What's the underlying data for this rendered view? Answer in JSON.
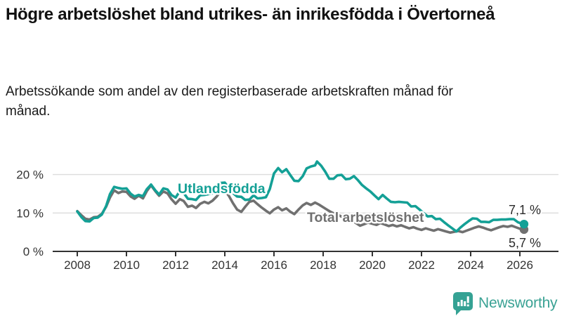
{
  "header": {
    "title": "Högre arbetslöshet bland utrikes- än inrikesfödda i Övertorneå",
    "subtitle": "Arbetssökande som andel av den registerbaserade arbetskraften månad för månad."
  },
  "branding": {
    "name": "Newsworthy",
    "icon_color": "#35a294",
    "text_color": "#3aa294"
  },
  "chart_data": {
    "type": "line",
    "title": "Högre arbetslöshet bland utrikes- än inrikesfödda i Övertorneå",
    "xlabel": "",
    "ylabel": "",
    "ylim": [
      0,
      25
    ],
    "grid": "horizontal",
    "grid_color": "#dcdcdc",
    "axis_color": "#333333",
    "legend": "inline-labels",
    "x_ticks": [
      2008,
      2010,
      2012,
      2014,
      2016,
      2018,
      2020,
      2022,
      2024,
      2026
    ],
    "y_ticks": [
      {
        "value": 0,
        "label": "0 %"
      },
      {
        "value": 10,
        "label": "10 %"
      },
      {
        "value": 20,
        "label": "20 %"
      }
    ],
    "series": [
      {
        "name": "Utlandsfödda",
        "color": "#14a096",
        "end_label": "7,1 %",
        "end_value": 7.1,
        "points": [
          [
            2008.0,
            10.4
          ],
          [
            2008.17,
            8.9
          ],
          [
            2008.33,
            7.9
          ],
          [
            2008.5,
            7.8
          ],
          [
            2008.67,
            8.7
          ],
          [
            2008.83,
            8.8
          ],
          [
            2009.0,
            9.6
          ],
          [
            2009.17,
            11.8
          ],
          [
            2009.33,
            14.9
          ],
          [
            2009.5,
            16.8
          ],
          [
            2009.67,
            16.5
          ],
          [
            2009.83,
            16.3
          ],
          [
            2010.0,
            16.4
          ],
          [
            2010.17,
            15.0
          ],
          [
            2010.33,
            14.3
          ],
          [
            2010.5,
            14.7
          ],
          [
            2010.67,
            14.4
          ],
          [
            2010.83,
            16.2
          ],
          [
            2011.0,
            17.4
          ],
          [
            2011.17,
            15.9
          ],
          [
            2011.33,
            14.8
          ],
          [
            2011.5,
            16.4
          ],
          [
            2011.67,
            16.1
          ],
          [
            2011.83,
            14.7
          ],
          [
            2012.0,
            14.0
          ],
          [
            2012.17,
            15.7
          ],
          [
            2012.33,
            15.2
          ],
          [
            2012.5,
            13.7
          ],
          [
            2012.67,
            13.6
          ],
          [
            2012.83,
            13.4
          ],
          [
            2013.0,
            14.6
          ],
          [
            2013.17,
            14.7
          ],
          [
            2013.33,
            14.9
          ],
          [
            2013.5,
            15.1
          ],
          [
            2013.67,
            16.4
          ],
          [
            2013.83,
            17.8
          ],
          [
            2014.0,
            17.9
          ],
          [
            2014.17,
            16.5
          ],
          [
            2014.33,
            15.2
          ],
          [
            2014.5,
            14.3
          ],
          [
            2014.67,
            14.2
          ],
          [
            2014.83,
            13.4
          ],
          [
            2015.0,
            13.5
          ],
          [
            2015.17,
            14.6
          ],
          [
            2015.33,
            13.8
          ],
          [
            2015.5,
            13.9
          ],
          [
            2015.67,
            14.1
          ],
          [
            2015.83,
            16.2
          ],
          [
            2016.0,
            20.3
          ],
          [
            2016.17,
            21.7
          ],
          [
            2016.33,
            20.6
          ],
          [
            2016.5,
            21.4
          ],
          [
            2016.67,
            19.8
          ],
          [
            2016.83,
            18.4
          ],
          [
            2017.0,
            18.3
          ],
          [
            2017.17,
            19.6
          ],
          [
            2017.33,
            21.6
          ],
          [
            2017.5,
            22.1
          ],
          [
            2017.67,
            22.4
          ],
          [
            2017.75,
            23.4
          ],
          [
            2017.92,
            22.3
          ],
          [
            2018.08,
            20.8
          ],
          [
            2018.25,
            18.9
          ],
          [
            2018.42,
            18.9
          ],
          [
            2018.58,
            19.8
          ],
          [
            2018.75,
            19.9
          ],
          [
            2018.92,
            18.8
          ],
          [
            2019.08,
            18.9
          ],
          [
            2019.25,
            19.6
          ],
          [
            2019.42,
            18.5
          ],
          [
            2019.58,
            17.3
          ],
          [
            2019.75,
            16.4
          ],
          [
            2019.92,
            15.6
          ],
          [
            2020.08,
            14.6
          ],
          [
            2020.25,
            13.6
          ],
          [
            2020.42,
            14.7
          ],
          [
            2020.58,
            13.8
          ],
          [
            2020.75,
            12.9
          ],
          [
            2020.92,
            12.8
          ],
          [
            2021.08,
            12.9
          ],
          [
            2021.25,
            12.8
          ],
          [
            2021.42,
            12.7
          ],
          [
            2021.58,
            11.7
          ],
          [
            2021.75,
            11.8
          ],
          [
            2021.92,
            10.9
          ],
          [
            2022.08,
            10.0
          ],
          [
            2022.25,
            9.1
          ],
          [
            2022.42,
            9.2
          ],
          [
            2022.58,
            8.4
          ],
          [
            2022.75,
            8.5
          ],
          [
            2022.92,
            7.6
          ],
          [
            2023.08,
            6.8
          ],
          [
            2023.25,
            6.0
          ],
          [
            2023.42,
            5.2
          ],
          [
            2023.58,
            6.2
          ],
          [
            2023.75,
            7.1
          ],
          [
            2023.92,
            7.9
          ],
          [
            2024.08,
            8.6
          ],
          [
            2024.25,
            8.5
          ],
          [
            2024.42,
            7.7
          ],
          [
            2024.58,
            7.7
          ],
          [
            2024.75,
            7.6
          ],
          [
            2024.92,
            8.2
          ],
          [
            2025.08,
            8.2
          ],
          [
            2025.25,
            8.3
          ],
          [
            2025.42,
            8.3
          ],
          [
            2025.58,
            8.4
          ],
          [
            2025.75,
            8.4
          ],
          [
            2025.92,
            7.6
          ],
          [
            2026.08,
            7.2
          ],
          [
            2026.17,
            7.1
          ]
        ]
      },
      {
        "name": "Total arbetslöshet",
        "color": "#707070",
        "end_label": "5,7 %",
        "end_value": 5.7,
        "points": [
          [
            2008.0,
            10.5
          ],
          [
            2008.17,
            9.4
          ],
          [
            2008.33,
            8.5
          ],
          [
            2008.5,
            8.3
          ],
          [
            2008.67,
            8.9
          ],
          [
            2008.83,
            9.0
          ],
          [
            2009.0,
            9.8
          ],
          [
            2009.17,
            11.6
          ],
          [
            2009.33,
            14.0
          ],
          [
            2009.5,
            15.9
          ],
          [
            2009.67,
            15.2
          ],
          [
            2009.83,
            15.6
          ],
          [
            2010.0,
            15.5
          ],
          [
            2010.17,
            14.3
          ],
          [
            2010.33,
            13.7
          ],
          [
            2010.5,
            14.5
          ],
          [
            2010.67,
            13.8
          ],
          [
            2010.83,
            15.7
          ],
          [
            2011.0,
            17.2
          ],
          [
            2011.17,
            15.7
          ],
          [
            2011.33,
            14.5
          ],
          [
            2011.5,
            15.6
          ],
          [
            2011.67,
            15.1
          ],
          [
            2011.83,
            13.6
          ],
          [
            2012.0,
            12.4
          ],
          [
            2012.17,
            13.6
          ],
          [
            2012.33,
            13.1
          ],
          [
            2012.5,
            11.6
          ],
          [
            2012.67,
            11.9
          ],
          [
            2012.83,
            11.3
          ],
          [
            2013.0,
            12.4
          ],
          [
            2013.17,
            12.9
          ],
          [
            2013.33,
            12.5
          ],
          [
            2013.5,
            13.2
          ],
          [
            2013.67,
            14.3
          ],
          [
            2013.83,
            15.6
          ],
          [
            2014.0,
            15.9
          ],
          [
            2014.17,
            14.4
          ],
          [
            2014.33,
            12.6
          ],
          [
            2014.5,
            10.9
          ],
          [
            2014.67,
            10.3
          ],
          [
            2014.83,
            11.6
          ],
          [
            2015.0,
            12.9
          ],
          [
            2015.17,
            13.2
          ],
          [
            2015.33,
            12.3
          ],
          [
            2015.5,
            11.4
          ],
          [
            2015.67,
            10.6
          ],
          [
            2015.83,
            9.9
          ],
          [
            2016.0,
            10.9
          ],
          [
            2016.17,
            11.5
          ],
          [
            2016.33,
            10.7
          ],
          [
            2016.5,
            11.2
          ],
          [
            2016.67,
            10.3
          ],
          [
            2016.83,
            9.7
          ],
          [
            2017.0,
            10.9
          ],
          [
            2017.17,
            12.0
          ],
          [
            2017.33,
            12.6
          ],
          [
            2017.5,
            12.1
          ],
          [
            2017.67,
            12.7
          ],
          [
            2017.83,
            12.2
          ],
          [
            2018.0,
            11.5
          ],
          [
            2018.17,
            10.8
          ],
          [
            2018.33,
            10.2
          ],
          [
            2018.5,
            9.7
          ],
          [
            2018.67,
            9.3
          ],
          [
            2018.83,
            8.8
          ],
          [
            2019.0,
            8.4
          ],
          [
            2019.17,
            8.0
          ],
          [
            2019.33,
            7.4
          ],
          [
            2019.5,
            6.7
          ],
          [
            2019.67,
            7.1
          ],
          [
            2019.83,
            7.5
          ],
          [
            2020.0,
            7.2
          ],
          [
            2020.17,
            6.9
          ],
          [
            2020.33,
            7.4
          ],
          [
            2020.5,
            7.0
          ],
          [
            2020.67,
            6.6
          ],
          [
            2020.83,
            6.9
          ],
          [
            2021.0,
            6.5
          ],
          [
            2021.17,
            6.8
          ],
          [
            2021.33,
            6.4
          ],
          [
            2021.5,
            6.0
          ],
          [
            2021.67,
            6.3
          ],
          [
            2021.83,
            5.9
          ],
          [
            2022.0,
            5.6
          ],
          [
            2022.17,
            6.0
          ],
          [
            2022.33,
            5.7
          ],
          [
            2022.5,
            5.4
          ],
          [
            2022.67,
            5.8
          ],
          [
            2022.83,
            5.5
          ],
          [
            2023.0,
            5.2
          ],
          [
            2023.17,
            4.9
          ],
          [
            2023.33,
            5.1
          ],
          [
            2023.5,
            5.3
          ],
          [
            2023.67,
            5.0
          ],
          [
            2023.83,
            5.4
          ],
          [
            2024.0,
            5.8
          ],
          [
            2024.17,
            6.2
          ],
          [
            2024.33,
            6.5
          ],
          [
            2024.5,
            6.2
          ],
          [
            2024.67,
            5.8
          ],
          [
            2024.83,
            5.5
          ],
          [
            2025.0,
            5.9
          ],
          [
            2025.17,
            6.3
          ],
          [
            2025.33,
            6.6
          ],
          [
            2025.5,
            6.4
          ],
          [
            2025.67,
            6.7
          ],
          [
            2025.83,
            6.3
          ],
          [
            2026.0,
            5.9
          ],
          [
            2026.17,
            5.7
          ]
        ]
      }
    ]
  }
}
